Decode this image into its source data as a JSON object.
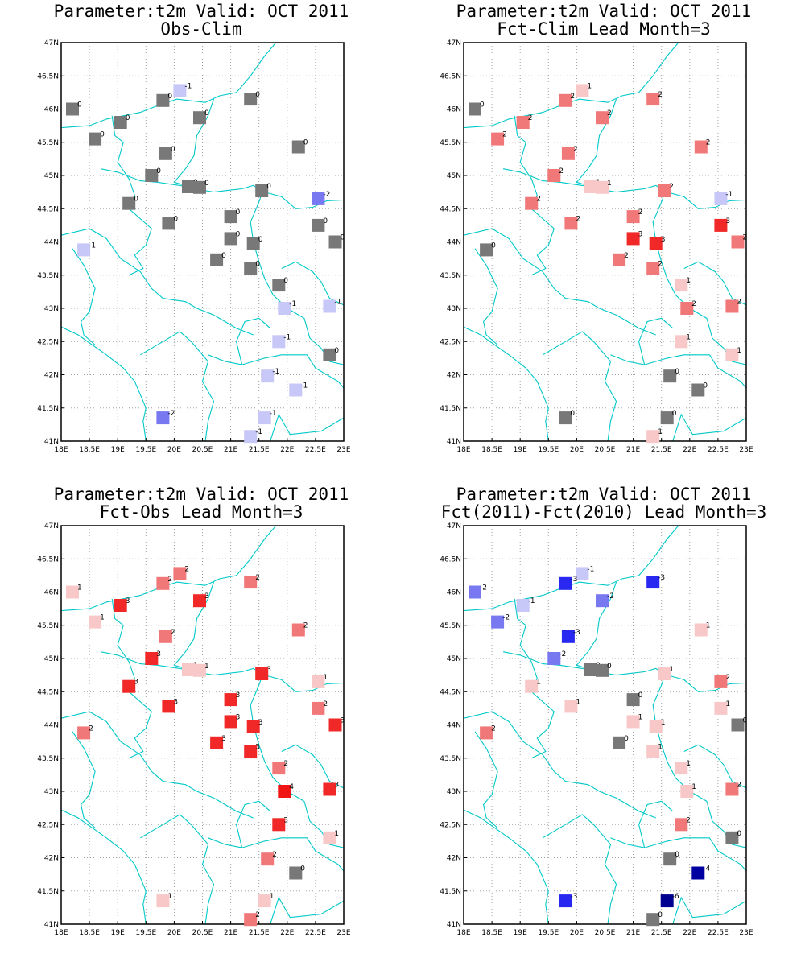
{
  "map_data": {
    "axes": {
      "x_ticks": [
        "18E",
        "18.5E",
        "19E",
        "19.5E",
        "20E",
        "20.5E",
        "21E",
        "21.5E",
        "22E",
        "22.5E",
        "23E"
      ],
      "y_ticks": [
        "41N",
        "41.5N",
        "42N",
        "42.5N",
        "43N",
        "43.5N",
        "44N",
        "44.5N",
        "45N",
        "45.5N",
        "46N",
        "46.5N",
        "47N"
      ],
      "lon_range": [
        18,
        23
      ],
      "lat_range": [
        41,
        47
      ],
      "grid": true
    },
    "colors": {
      "neg6": "#000090",
      "neg4": "#0000a0",
      "neg3": "#2828f0",
      "neg2": "#7878f0",
      "neg1": "#c8c8f8",
      "zero": "#787878",
      "pos1": "#f8c8c8",
      "pos2": "#f07878",
      "pos3": "#f02828",
      "pos4": "#f01414",
      "coast": "#00c8c8"
    },
    "stations": [
      [
        18.2,
        46.0
      ],
      [
        20.1,
        46.28
      ],
      [
        19.8,
        46.13
      ],
      [
        21.35,
        46.15
      ],
      [
        19.05,
        45.8
      ],
      [
        20.45,
        45.87
      ],
      [
        18.6,
        45.55
      ],
      [
        22.2,
        45.43
      ],
      [
        19.85,
        45.33
      ],
      [
        19.6,
        45.0
      ],
      [
        20.25,
        44.83
      ],
      [
        20.45,
        44.82
      ],
      [
        21.55,
        44.77
      ],
      [
        22.55,
        44.65
      ],
      [
        19.2,
        44.58
      ],
      [
        21.0,
        44.38
      ],
      [
        19.9,
        44.28
      ],
      [
        22.55,
        44.25
      ],
      [
        21.0,
        44.05
      ],
      [
        21.4,
        43.97
      ],
      [
        22.85,
        44.0
      ],
      [
        18.4,
        43.88
      ],
      [
        20.75,
        43.73
      ],
      [
        21.35,
        43.6
      ],
      [
        21.85,
        43.35
      ],
      [
        21.95,
        43.0
      ],
      [
        22.75,
        43.03
      ],
      [
        21.85,
        42.5
      ],
      [
        22.75,
        42.3
      ],
      [
        21.65,
        41.98
      ],
      [
        22.15,
        41.77
      ],
      [
        19.8,
        41.35
      ],
      [
        21.6,
        41.35
      ],
      [
        21.35,
        41.07
      ]
    ],
    "panels": [
      {
        "title_line1": "Parameter:t2m Valid: OCT 2011",
        "title_line2": "Obs-Clim",
        "values": [
          0,
          -1,
          0,
          0,
          0,
          0,
          0,
          0,
          0,
          0,
          0,
          0,
          0,
          -2,
          0,
          0,
          0,
          0,
          0,
          0,
          0,
          -1,
          0,
          0,
          0,
          -1,
          -1,
          -1,
          0,
          -1,
          -1,
          -2,
          -1,
          -1
        ]
      },
      {
        "title_line1": "Parameter:t2m Valid: OCT 2011",
        "title_line2": "Fct-Clim Lead Month=3",
        "values": [
          0,
          1,
          2,
          2,
          2,
          2,
          2,
          2,
          2,
          2,
          1,
          1,
          2,
          -1,
          2,
          2,
          2,
          3,
          3,
          3,
          2,
          0,
          2,
          2,
          1,
          2,
          2,
          1,
          1,
          0,
          0,
          0,
          0,
          1
        ]
      },
      {
        "title_line1": "Parameter:t2m Valid: OCT 2011",
        "title_line2": "Fct-Obs Lead Month=3",
        "values": [
          1,
          2,
          2,
          2,
          3,
          3,
          1,
          2,
          2,
          3,
          1,
          1,
          3,
          1,
          3,
          3,
          3,
          2,
          3,
          3,
          3,
          2,
          3,
          3,
          2,
          4,
          3,
          3,
          1,
          2,
          0,
          1,
          1,
          2
        ]
      },
      {
        "title_line1": "Parameter:t2m Valid: OCT 2011",
        "title_line2": "Fct(2011)-Fct(2010) Lead Month=3",
        "values": [
          -2,
          -1,
          -3,
          -3,
          -1,
          -2,
          -2,
          1,
          -3,
          -2,
          0,
          0,
          1,
          2,
          1,
          0,
          1,
          1,
          1,
          1,
          0,
          2,
          0,
          1,
          1,
          1,
          2,
          2,
          0,
          0,
          -4,
          -3,
          -6,
          0
        ]
      }
    ]
  }
}
